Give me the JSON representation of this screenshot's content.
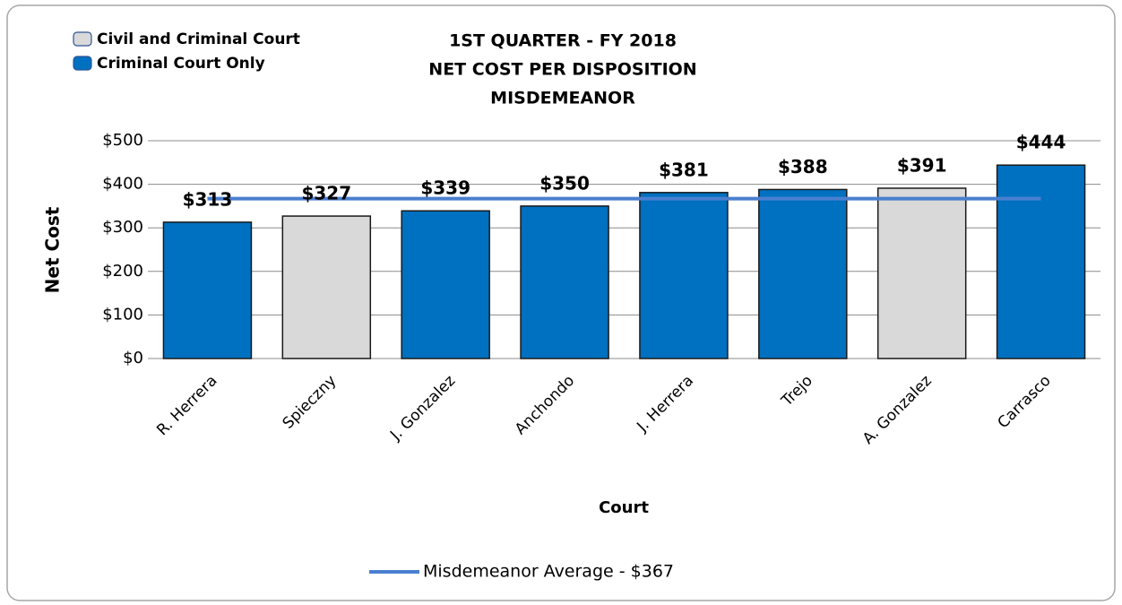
{
  "chart_data": {
    "type": "bar",
    "title": [
      "1ST QUARTER - FY 2018",
      "NET COST PER DISPOSITION",
      "MISDEMEANOR"
    ],
    "x_label": "Court",
    "y_label": "Net Cost",
    "categories": [
      "R. Herrera",
      "Spieczny",
      "J. Gonzalez",
      "Anchondo",
      "J. Herrera",
      "Trejo",
      "A. Gonzalez",
      "Carrasco"
    ],
    "values": [
      313,
      327,
      339,
      350,
      381,
      388,
      391,
      444
    ],
    "value_labels": [
      "$313",
      "$327",
      "$339",
      "$350",
      "$381",
      "$388",
      "$391",
      "$444"
    ],
    "colors": [
      "#0070c0",
      "#d9d9d9",
      "#0070c0",
      "#0070c0",
      "#0070c0",
      "#0070c0",
      "#d9d9d9",
      "#0070c0"
    ],
    "legend": [
      {
        "name": "Civil and Criminal Court",
        "color": "#d9d9d9"
      },
      {
        "name": "Criminal Court Only",
        "color": "#0070c0"
      }
    ],
    "average": {
      "name": "Misdemeanor Average - $367",
      "value": 367,
      "color": "#4a7fd0"
    },
    "ylim": [
      0,
      500
    ],
    "yticks": [
      {
        "value": 0,
        "label": "$0"
      },
      {
        "value": 100,
        "label": "$100"
      },
      {
        "value": 200,
        "label": "$200"
      },
      {
        "value": 300,
        "label": "$300"
      },
      {
        "value": 400,
        "label": "$400"
      },
      {
        "value": 500,
        "label": "$500"
      }
    ],
    "grid": true
  }
}
